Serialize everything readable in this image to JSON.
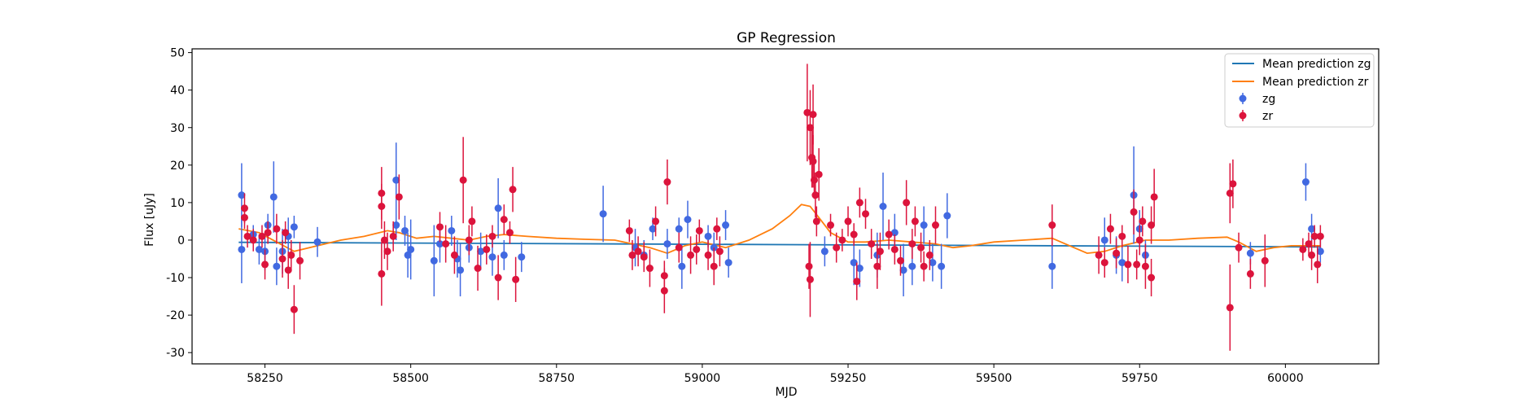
{
  "chart_data": {
    "type": "scatter",
    "title": "GP Regression",
    "xlabel": "MJD",
    "ylabel": "Flux [uJy]",
    "xlim": [
      58125,
      60160
    ],
    "ylim": [
      -33,
      51
    ],
    "x_ticks": [
      58250,
      58500,
      58750,
      59000,
      59250,
      59500,
      59750,
      60000
    ],
    "y_ticks": [
      -30,
      -20,
      -10,
      0,
      10,
      20,
      30,
      40,
      50
    ],
    "grid": false,
    "legend_position": "top-right",
    "legend": [
      "Mean prediction zg",
      "Mean prediction zr",
      "zg",
      "zr"
    ],
    "series": [
      {
        "name": "Mean prediction zg",
        "kind": "line",
        "color": "#1f77b4",
        "x": [
          58205,
          60060
        ],
        "y": [
          -0.6,
          -1.8
        ]
      },
      {
        "name": "Mean prediction zr",
        "kind": "line",
        "color": "#ff7f0e",
        "x": [
          58205,
          58240,
          58270,
          58300,
          58340,
          58380,
          58420,
          58460,
          58480,
          58510,
          58540,
          58570,
          58600,
          58630,
          58660,
          58700,
          58750,
          58800,
          58850,
          58880,
          58910,
          58940,
          58970,
          59000,
          59040,
          59080,
          59120,
          59150,
          59170,
          59185,
          59200,
          59220,
          59250,
          59280,
          59320,
          59360,
          59400,
          59430,
          59460,
          59500,
          59550,
          59600,
          59630,
          59660,
          59690,
          59720,
          59760,
          59800,
          59850,
          59900,
          59920,
          59950,
          59980,
          60010,
          60040,
          60060
        ],
        "y": [
          3.0,
          2.0,
          -0.5,
          -3.0,
          -1.5,
          0.0,
          1.0,
          2.5,
          2.0,
          0.5,
          1.0,
          0.5,
          0.0,
          1.0,
          1.5,
          1.0,
          0.5,
          0.2,
          0.0,
          -1.0,
          -2.0,
          -3.5,
          -1.5,
          -0.5,
          -2.0,
          0.0,
          3.0,
          6.5,
          9.5,
          9.0,
          6.0,
          2.0,
          -0.5,
          -0.5,
          0.0,
          -0.5,
          -1.0,
          -2.0,
          -1.5,
          -0.5,
          0.0,
          0.5,
          -1.5,
          -3.5,
          -3.0,
          -1.5,
          0.0,
          0.0,
          0.5,
          0.8,
          -0.5,
          -3.0,
          -2.0,
          -1.5,
          -1.5,
          -1.5
        ]
      },
      {
        "name": "zg",
        "kind": "errorbar",
        "color": "#4169e1",
        "points": [
          [
            58210,
            12,
            8.5
          ],
          [
            58210,
            -2.5,
            9
          ],
          [
            58230,
            1.5,
            2.5
          ],
          [
            58240,
            -2.5,
            4
          ],
          [
            58250,
            -3,
            5
          ],
          [
            58255,
            4,
            3
          ],
          [
            58265,
            11.5,
            9.5
          ],
          [
            58270,
            -7,
            5
          ],
          [
            58280,
            -3,
            6
          ],
          [
            58290,
            1,
            5
          ],
          [
            58300,
            3.5,
            3
          ],
          [
            58340,
            -0.5,
            4
          ],
          [
            58475,
            16,
            10
          ],
          [
            58475,
            4,
            4
          ],
          [
            58490,
            2.5,
            4
          ],
          [
            58495,
            -4,
            6
          ],
          [
            58500,
            -2.5,
            8
          ],
          [
            58540,
            -5.5,
            9.5
          ],
          [
            58550,
            -1,
            5
          ],
          [
            58570,
            2.5,
            4
          ],
          [
            58580,
            -5,
            5
          ],
          [
            58585,
            -8,
            7
          ],
          [
            58600,
            -2,
            4
          ],
          [
            58620,
            -3,
            5
          ],
          [
            58640,
            -4.5,
            5
          ],
          [
            58650,
            8.5,
            8
          ],
          [
            58660,
            -4,
            4
          ],
          [
            58690,
            -4.5,
            4
          ],
          [
            58830,
            7,
            7.5
          ],
          [
            58885,
            -2,
            5
          ],
          [
            58900,
            -4,
            4
          ],
          [
            58915,
            3,
            3
          ],
          [
            58940,
            -1,
            4
          ],
          [
            58960,
            3,
            3
          ],
          [
            58965,
            -7,
            6
          ],
          [
            58975,
            5.5,
            5
          ],
          [
            59010,
            1,
            3
          ],
          [
            59020,
            -2,
            4
          ],
          [
            59040,
            4,
            4
          ],
          [
            59045,
            -6,
            4
          ],
          [
            59210,
            -3,
            4
          ],
          [
            59260,
            -6,
            6
          ],
          [
            59270,
            -7.5,
            5
          ],
          [
            59300,
            -4,
            6
          ],
          [
            59310,
            9,
            9
          ],
          [
            59330,
            2,
            5
          ],
          [
            59345,
            -8,
            7
          ],
          [
            59360,
            -7,
            5
          ],
          [
            59380,
            4,
            5
          ],
          [
            59395,
            -6,
            5
          ],
          [
            59410,
            -7,
            6
          ],
          [
            59420,
            6.5,
            6
          ],
          [
            59600,
            -7,
            6
          ],
          [
            59690,
            0,
            6
          ],
          [
            59710,
            -4,
            5
          ],
          [
            59720,
            -6,
            5
          ],
          [
            59740,
            12,
            13
          ],
          [
            59750,
            3,
            5
          ],
          [
            59760,
            -4,
            4
          ],
          [
            59940,
            -3.5,
            3
          ],
          [
            60035,
            15.5,
            5
          ],
          [
            60045,
            3,
            4
          ],
          [
            60060,
            -3,
            3
          ]
        ]
      },
      {
        "name": "zr",
        "kind": "errorbar",
        "color": "#dc143c",
        "points": [
          [
            58215,
            8.5,
            4
          ],
          [
            58215,
            6,
            3
          ],
          [
            58220,
            1,
            3
          ],
          [
            58230,
            0,
            3
          ],
          [
            58245,
            1,
            3
          ],
          [
            58250,
            -6.5,
            4
          ],
          [
            58255,
            2,
            3
          ],
          [
            58270,
            3,
            4
          ],
          [
            58280,
            -5,
            5
          ],
          [
            58285,
            2,
            3
          ],
          [
            58290,
            -8,
            5
          ],
          [
            58295,
            -4,
            4
          ],
          [
            58300,
            -18.5,
            6.5
          ],
          [
            58310,
            -5.5,
            5
          ],
          [
            58450,
            12.5,
            7
          ],
          [
            58450,
            9,
            6
          ],
          [
            58455,
            0,
            5
          ],
          [
            58460,
            -3,
            5
          ],
          [
            58450,
            -9,
            8.5
          ],
          [
            58470,
            1,
            4
          ],
          [
            58480,
            11.5,
            6
          ],
          [
            58550,
            3.5,
            4
          ],
          [
            58560,
            -1,
            5
          ],
          [
            58575,
            -4,
            5
          ],
          [
            58590,
            16,
            11.5
          ],
          [
            58600,
            0,
            4
          ],
          [
            58605,
            5,
            4
          ],
          [
            58615,
            -7.5,
            6
          ],
          [
            58630,
            -2.5,
            4
          ],
          [
            58640,
            1,
            3
          ],
          [
            58650,
            -10,
            6
          ],
          [
            58660,
            5.5,
            4
          ],
          [
            58670,
            2,
            3
          ],
          [
            58675,
            13.5,
            6
          ],
          [
            58680,
            -10.5,
            6
          ],
          [
            58875,
            2.5,
            3
          ],
          [
            58880,
            -4,
            4
          ],
          [
            58890,
            -3,
            4
          ],
          [
            58900,
            -4.5,
            4
          ],
          [
            58910,
            -7.5,
            5
          ],
          [
            58920,
            5,
            4
          ],
          [
            58935,
            -9.5,
            4
          ],
          [
            58935,
            -13.5,
            6
          ],
          [
            58940,
            15.5,
            6
          ],
          [
            58960,
            -2,
            4
          ],
          [
            58980,
            -4,
            5
          ],
          [
            58990,
            -2.5,
            4
          ],
          [
            58995,
            2.5,
            3
          ],
          [
            59010,
            -4,
            4
          ],
          [
            59020,
            -7,
            5
          ],
          [
            59025,
            3,
            3
          ],
          [
            59030,
            -3,
            4
          ],
          [
            59180,
            34,
            13
          ],
          [
            59185,
            30,
            10
          ],
          [
            59188,
            22,
            8
          ],
          [
            59190,
            21,
            7
          ],
          [
            59192,
            16,
            5
          ],
          [
            59194,
            12,
            6
          ],
          [
            59196,
            5,
            4
          ],
          [
            59183,
            -7,
            6
          ],
          [
            59185,
            -10.5,
            10
          ],
          [
            59200,
            17.5,
            7
          ],
          [
            59190,
            33.5,
            8
          ],
          [
            59220,
            4,
            3
          ],
          [
            59230,
            -2,
            4
          ],
          [
            59240,
            0,
            3
          ],
          [
            59250,
            5,
            4
          ],
          [
            59260,
            1.5,
            3
          ],
          [
            59265,
            -11,
            5
          ],
          [
            59270,
            10,
            4
          ],
          [
            59280,
            7,
            4
          ],
          [
            59290,
            -1,
            4
          ],
          [
            59300,
            -7,
            6
          ],
          [
            59305,
            -3,
            5
          ],
          [
            59320,
            1.5,
            4
          ],
          [
            59330,
            -2.5,
            4
          ],
          [
            59340,
            -5.5,
            4
          ],
          [
            59350,
            10,
            6
          ],
          [
            59360,
            -1,
            4
          ],
          [
            59365,
            5,
            4
          ],
          [
            59375,
            -2,
            4
          ],
          [
            59380,
            -7,
            4
          ],
          [
            59390,
            -4,
            4
          ],
          [
            59400,
            4,
            5
          ],
          [
            59600,
            4,
            5.5
          ],
          [
            59680,
            -4,
            5
          ],
          [
            59690,
            -6,
            4
          ],
          [
            59700,
            3,
            4
          ],
          [
            59710,
            -3.5,
            4
          ],
          [
            59720,
            1,
            3
          ],
          [
            59730,
            -6.5,
            5
          ],
          [
            59740,
            7.5,
            6
          ],
          [
            59745,
            -6.5,
            4
          ],
          [
            59750,
            0,
            4
          ],
          [
            59755,
            5,
            4
          ],
          [
            59760,
            -7,
            6
          ],
          [
            59770,
            4,
            5
          ],
          [
            59775,
            11.5,
            7.5
          ],
          [
            59770,
            -10,
            5
          ],
          [
            59905,
            12.5,
            8
          ],
          [
            59910,
            15,
            6.5
          ],
          [
            59905,
            -18,
            11.5
          ],
          [
            59920,
            -2,
            4
          ],
          [
            59940,
            -9,
            4
          ],
          [
            59965,
            -5.5,
            7
          ],
          [
            60030,
            -2.5,
            3
          ],
          [
            60040,
            -1,
            3
          ],
          [
            60045,
            -4,
            4
          ],
          [
            60050,
            1,
            3
          ],
          [
            60055,
            -6.5,
            5
          ],
          [
            60060,
            1,
            3
          ]
        ]
      }
    ]
  }
}
